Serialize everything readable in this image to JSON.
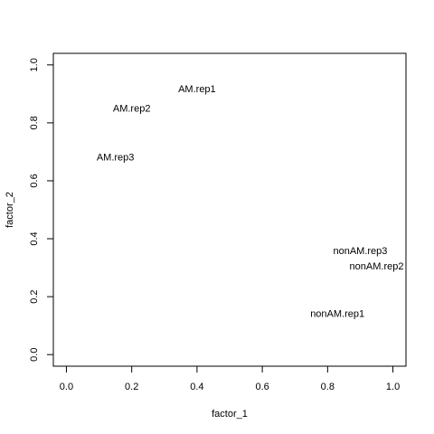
{
  "chart_data": {
    "type": "scatter",
    "title": "",
    "xlabel": "factor_1",
    "ylabel": "factor_2",
    "xlim": [
      -0.04,
      1.04
    ],
    "ylim": [
      -0.04,
      1.04
    ],
    "xticks": [
      0.0,
      0.2,
      0.4,
      0.6,
      0.8,
      1.0
    ],
    "yticks": [
      0.0,
      0.2,
      0.4,
      0.6,
      0.8,
      1.0
    ],
    "xtick_labels": [
      "0.0",
      "0.2",
      "0.4",
      "0.6",
      "0.8",
      "1.0"
    ],
    "ytick_labels": [
      "0.0",
      "0.2",
      "0.4",
      "0.6",
      "0.8",
      "1.0"
    ],
    "grid": false,
    "points": [
      {
        "label": "AM.rep1",
        "x": 0.4,
        "y": 0.915
      },
      {
        "label": "AM.rep2",
        "x": 0.2,
        "y": 0.848
      },
      {
        "label": "AM.rep3",
        "x": 0.15,
        "y": 0.68
      },
      {
        "label": "nonAM.rep3",
        "x": 0.9,
        "y": 0.357
      },
      {
        "label": "nonAM.rep2",
        "x": 0.95,
        "y": 0.303
      },
      {
        "label": "nonAM.rep1",
        "x": 0.83,
        "y": 0.14
      }
    ]
  }
}
